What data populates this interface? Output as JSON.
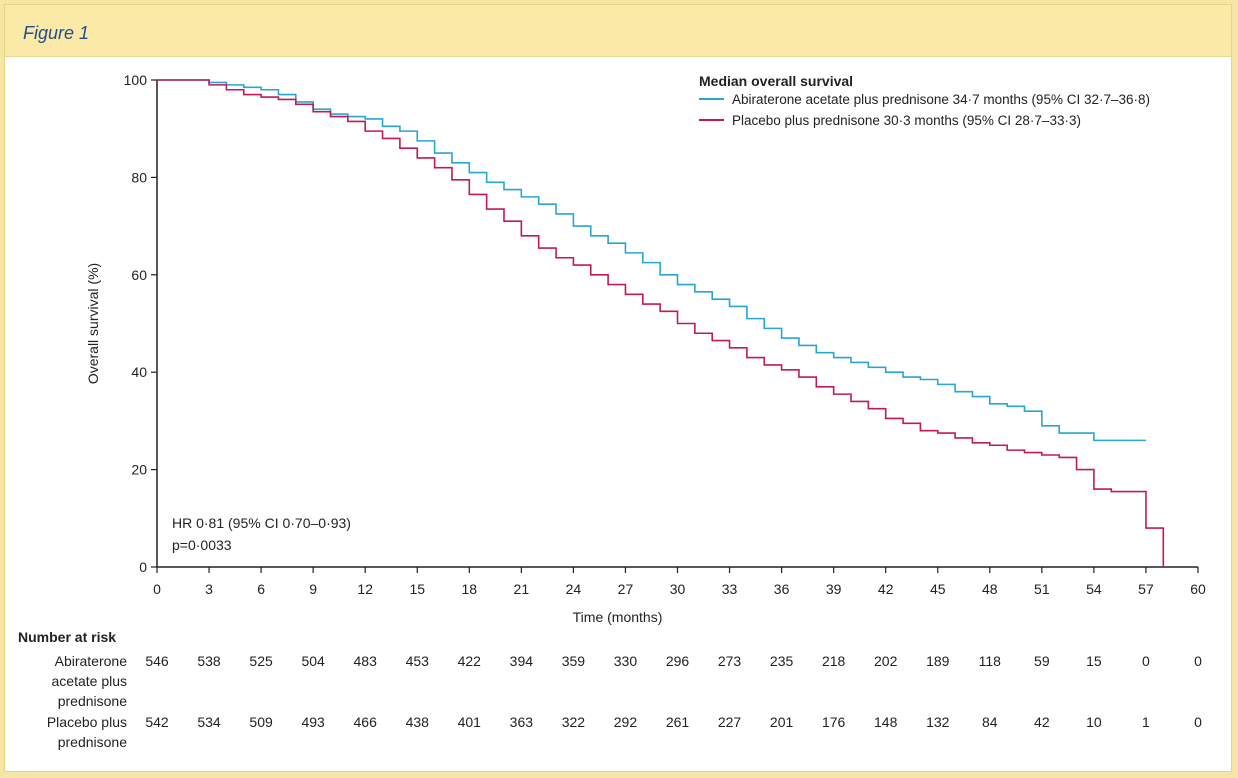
{
  "header": {
    "title": "Figure 1"
  },
  "chart_data": {
    "type": "line",
    "title": "",
    "xlabel": "Time (months)",
    "ylabel": "Overall survival (%)",
    "xlim": [
      0,
      60
    ],
    "ylim": [
      0,
      100
    ],
    "xticks": [
      0,
      3,
      6,
      9,
      12,
      15,
      18,
      21,
      24,
      27,
      30,
      33,
      36,
      39,
      42,
      45,
      48,
      51,
      54,
      57,
      60
    ],
    "yticks": [
      0,
      20,
      40,
      60,
      80,
      100
    ],
    "grid": false,
    "legend": {
      "title": "Median overall survival",
      "position": "top-right",
      "entries": [
        "Abiraterone acetate plus prednisone 34·7 months (95% CI 32·7–36·8)",
        "Placebo plus prednisone 30·3 months (95% CI 28·7–33·3)"
      ]
    },
    "annotations": [
      "HR 0·81 (95% CI 0·70–0·93)",
      "p=0·0033"
    ],
    "series": [
      {
        "name": "Abiraterone acetate plus prednisone",
        "color": "#29a6cf",
        "x": [
          0,
          1,
          2,
          3,
          4,
          5,
          6,
          7,
          8,
          9,
          10,
          11,
          12,
          13,
          14,
          15,
          16,
          17,
          18,
          19,
          20,
          21,
          22,
          23,
          24,
          25,
          26,
          27,
          28,
          29,
          30,
          31,
          32,
          33,
          34,
          35,
          36,
          37,
          38,
          39,
          40,
          41,
          42,
          43,
          44,
          45,
          46,
          47,
          48,
          49,
          50,
          51,
          52,
          53,
          54,
          55,
          56,
          57
        ],
        "y": [
          100,
          100,
          100,
          99.5,
          99,
          98.5,
          98,
          97,
          95.5,
          94,
          93,
          92.5,
          92,
          90.5,
          89.5,
          87.5,
          85,
          83,
          81,
          79,
          77.5,
          76,
          74.5,
          72.5,
          70,
          68,
          66.5,
          64.5,
          62.5,
          60,
          58,
          56.5,
          55,
          53.5,
          51,
          49,
          47,
          45.5,
          44,
          43,
          42,
          41,
          40,
          39,
          38.5,
          37.5,
          36,
          35,
          33.5,
          33,
          32,
          29,
          27.5,
          27.5,
          26,
          26,
          26,
          26
        ]
      },
      {
        "name": "Placebo plus prednisone",
        "color": "#c2185b",
        "x": [
          0,
          1,
          2,
          3,
          4,
          5,
          6,
          7,
          8,
          9,
          10,
          11,
          12,
          13,
          14,
          15,
          16,
          17,
          18,
          19,
          20,
          21,
          22,
          23,
          24,
          25,
          26,
          27,
          28,
          29,
          30,
          31,
          32,
          33,
          34,
          35,
          36,
          37,
          38,
          39,
          40,
          41,
          42,
          43,
          44,
          45,
          46,
          47,
          48,
          49,
          50,
          51,
          52,
          53,
          54,
          55,
          56,
          57,
          58
        ],
        "y": [
          100,
          100,
          100,
          99,
          98,
          97,
          96.5,
          96,
          95,
          93.5,
          92.5,
          91.5,
          89.5,
          88,
          86,
          84,
          82,
          79.5,
          76.5,
          73.5,
          71,
          68,
          65.5,
          63.5,
          62,
          60,
          58,
          56,
          54,
          52.5,
          50,
          48,
          46.5,
          45,
          43,
          41.5,
          40.5,
          39,
          37,
          35.5,
          34,
          32.5,
          30.5,
          29.5,
          28,
          27.5,
          26.5,
          25.5,
          25,
          24,
          23.5,
          23,
          22.5,
          20,
          16,
          15.5,
          15.5,
          8,
          0
        ]
      }
    ]
  },
  "risk_table": {
    "title": "Number at risk",
    "times": [
      0,
      3,
      6,
      9,
      12,
      15,
      18,
      21,
      24,
      27,
      30,
      33,
      36,
      39,
      42,
      45,
      48,
      51,
      54,
      57,
      60
    ],
    "rows": [
      {
        "label_lines": [
          "Abiraterone",
          "acetate plus",
          "prednisone"
        ],
        "values": [
          "546",
          "538",
          "525",
          "504",
          "483",
          "453",
          "422",
          "394",
          "359",
          "330",
          "296",
          "273",
          "235",
          "218",
          "202",
          "189",
          "118",
          "59",
          "15",
          "0",
          "0"
        ]
      },
      {
        "label_lines": [
          "Placebo plus",
          "prednisone"
        ],
        "values": [
          "542",
          "534",
          "509",
          "493",
          "466",
          "438",
          "401",
          "363",
          "322",
          "292",
          "261",
          "227",
          "201",
          "176",
          "148",
          "132",
          "84",
          "42",
          "10",
          "1",
          "0"
        ]
      }
    ]
  }
}
